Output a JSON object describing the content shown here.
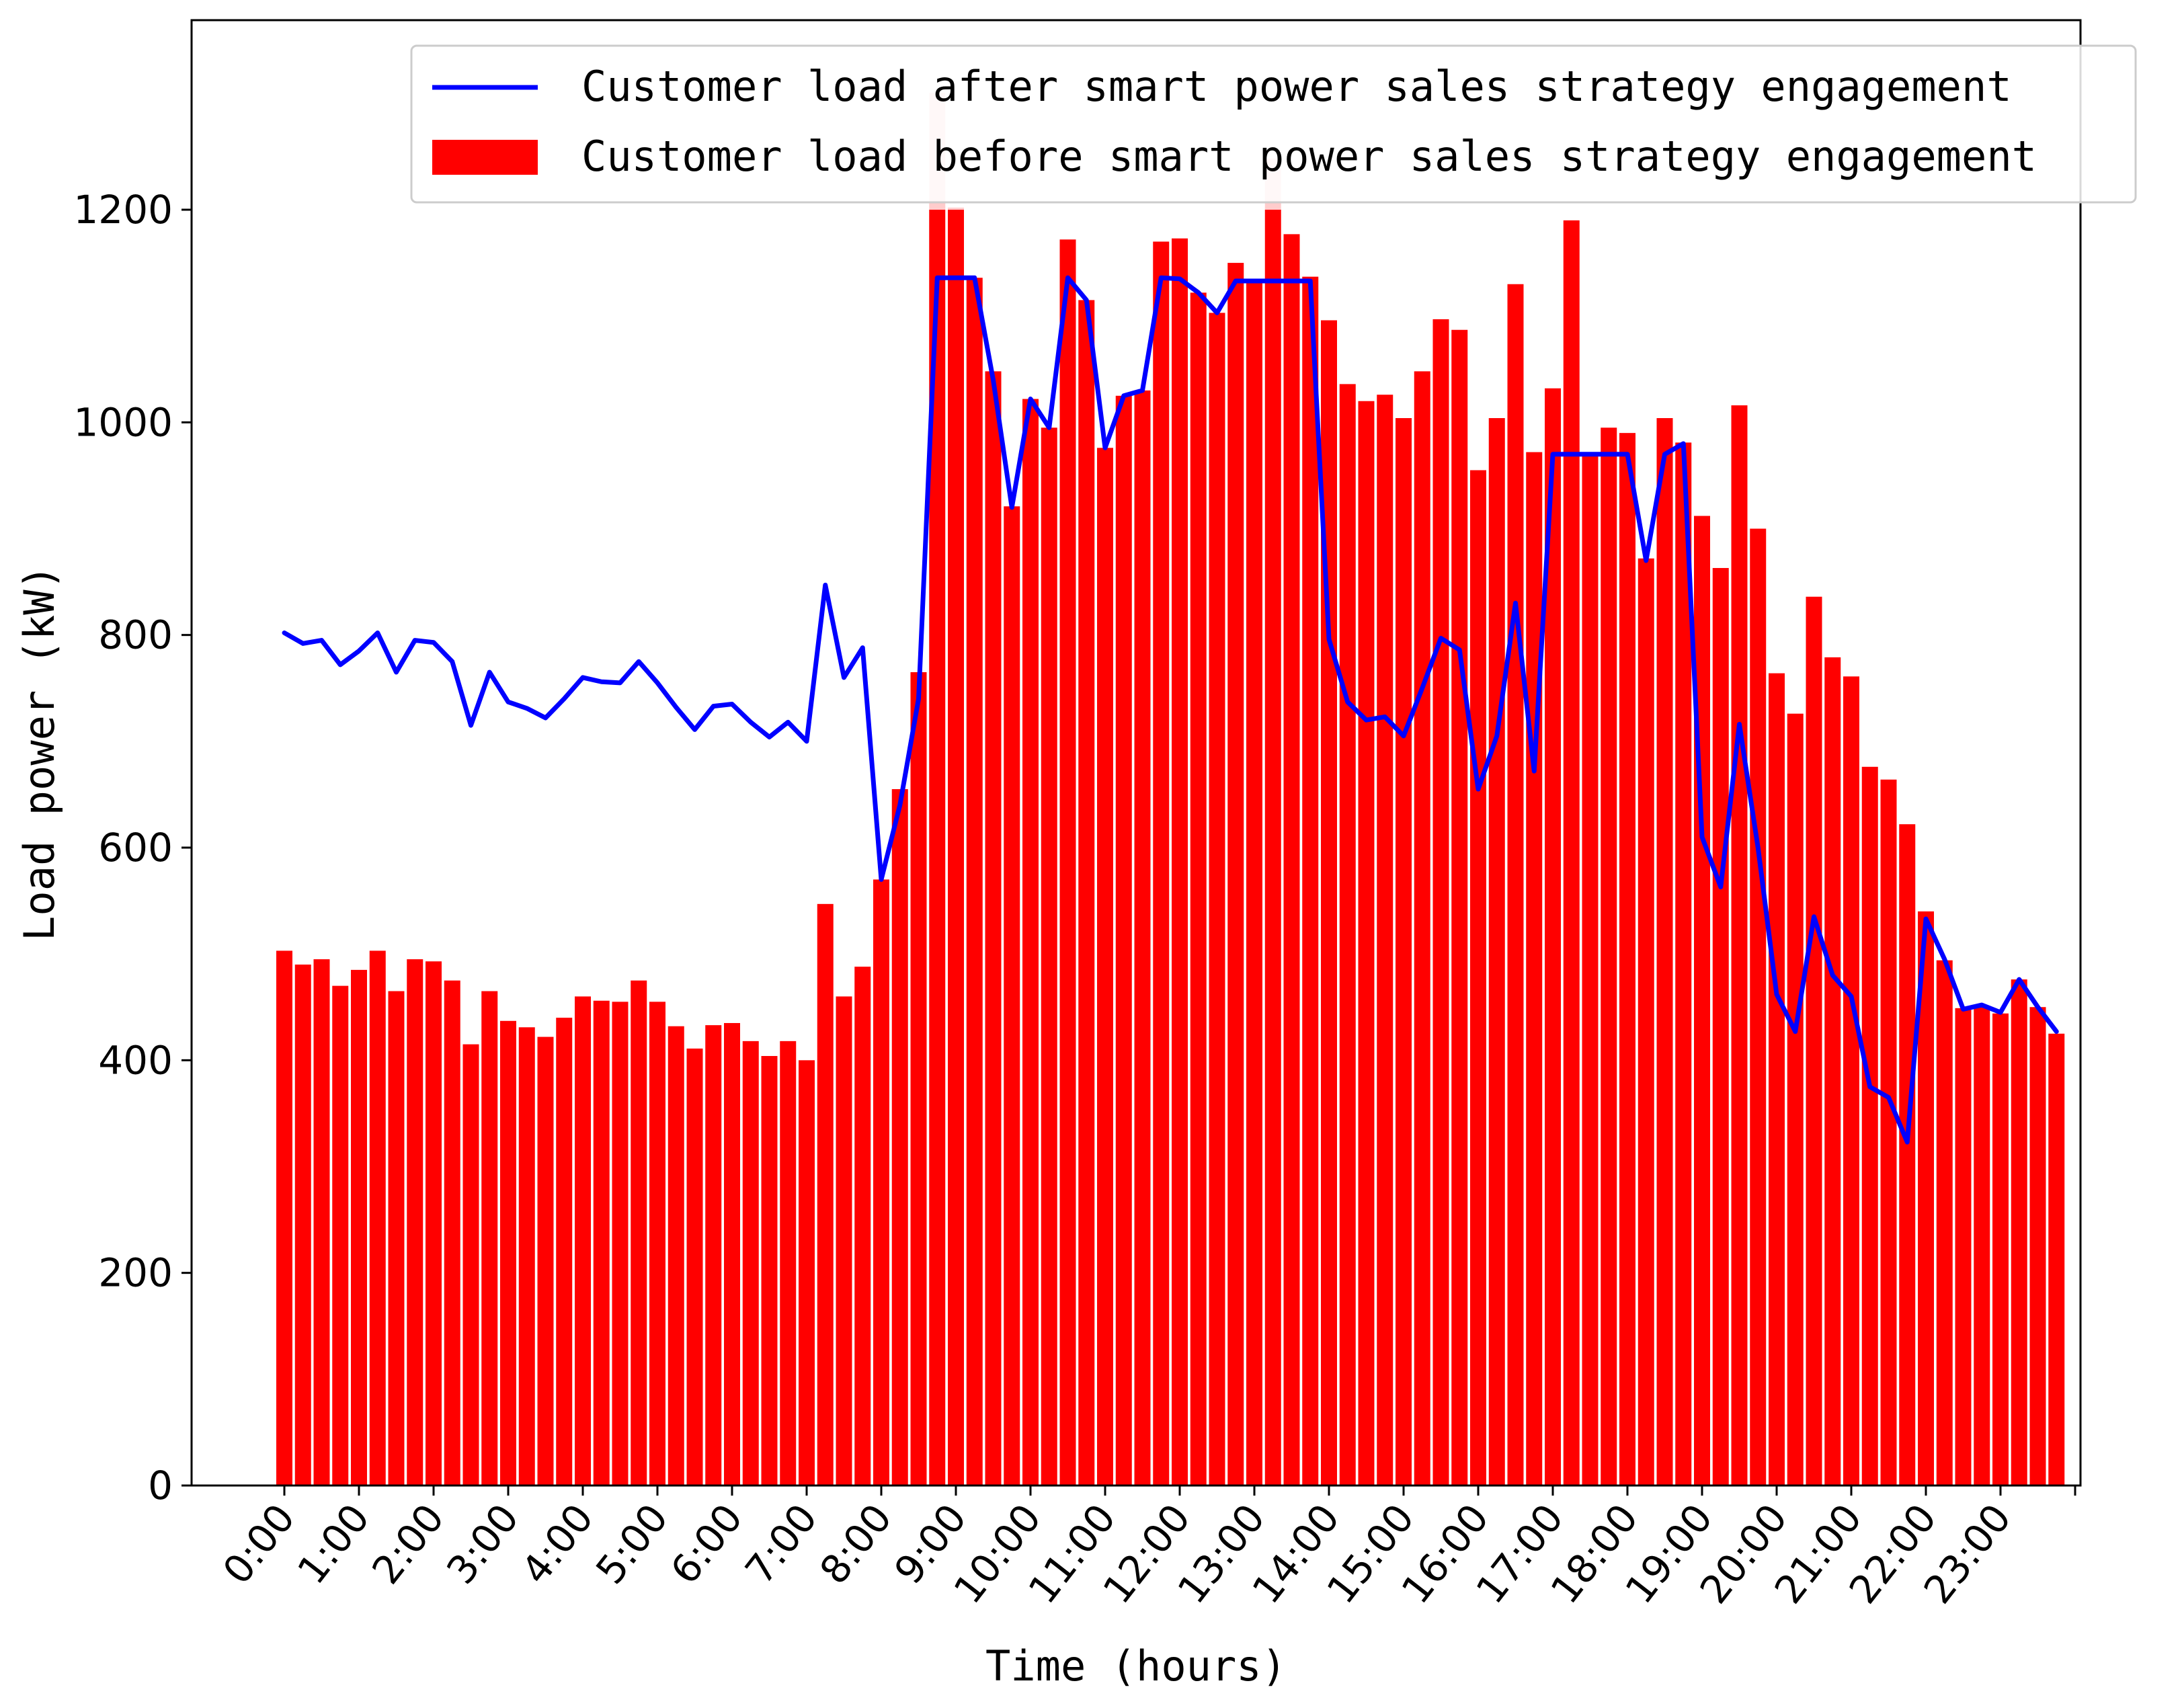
{
  "chart_data": {
    "type": "bar",
    "xlabel": "Time (hours)",
    "ylabel": "Load power (kW)",
    "ylim": [
      0,
      1380
    ],
    "yticks": [
      0,
      200,
      400,
      600,
      800,
      1000,
      1200
    ],
    "xtick_labels": [
      "0:00",
      "1:00",
      "2:00",
      "3:00",
      "4:00",
      "5:00",
      "6:00",
      "7:00",
      "8:00",
      "9:00",
      "10:00",
      "11:00",
      "12:00",
      "13:00",
      "14:00",
      "15:00",
      "16:00",
      "17:00",
      "18:00",
      "19:00",
      "20:00",
      "21:00",
      "22:00",
      "23:00"
    ],
    "interval_minutes": 15,
    "grid": false,
    "legend_position": "top-right",
    "series": [
      {
        "name": "Customer load after smart power sales strategy engagement",
        "kind": "line",
        "color": "#0000ff",
        "values": [
          802,
          792,
          795,
          772,
          785,
          802,
          765,
          795,
          793,
          775,
          715,
          765,
          737,
          731,
          722,
          740,
          760,
          756,
          755,
          775,
          755,
          732,
          711,
          733,
          735,
          718,
          704,
          718,
          700,
          847,
          760,
          788,
          570,
          640,
          740,
          1136,
          1136,
          1136,
          1040,
          920,
          1022,
          995,
          1136,
          1115,
          976,
          1025,
          1030,
          1136,
          1135,
          1122,
          1103,
          1133,
          1133,
          1133,
          1133,
          1133,
          796,
          737,
          720,
          723,
          705,
          750,
          797,
          786,
          655,
          705,
          830,
          672,
          970,
          970,
          970,
          970,
          970,
          870,
          970,
          980,
          610,
          563,
          716,
          600,
          462,
          427,
          535,
          480,
          460,
          375,
          365,
          323,
          533,
          495,
          448,
          452,
          445,
          476,
          450,
          427
        ]
      },
      {
        "name": "Customer load before smart power sales strategy engagement",
        "kind": "bar",
        "color": "#ff0000",
        "values": [
          503,
          490,
          495,
          470,
          485,
          503,
          465,
          495,
          493,
          475,
          415,
          465,
          437,
          431,
          422,
          440,
          460,
          456,
          455,
          475,
          455,
          432,
          411,
          433,
          435,
          418,
          404,
          418,
          400,
          547,
          460,
          488,
          570,
          655,
          765,
          1310,
          1202,
          1136,
          1048,
          921,
          1022,
          995,
          1172,
          1115,
          976,
          1025,
          1030,
          1170,
          1173,
          1122,
          1103,
          1150,
          1133,
          1248,
          1177,
          1137,
          1096,
          1036,
          1020,
          1026,
          1004,
          1048,
          1097,
          1087,
          955,
          1004,
          1130,
          972,
          1032,
          1190,
          970,
          995,
          990,
          872,
          1004,
          981,
          912,
          863,
          1016,
          900,
          764,
          726,
          836,
          779,
          761,
          676,
          664,
          622,
          540,
          494,
          449,
          450,
          444,
          476,
          450,
          425
        ]
      }
    ]
  }
}
